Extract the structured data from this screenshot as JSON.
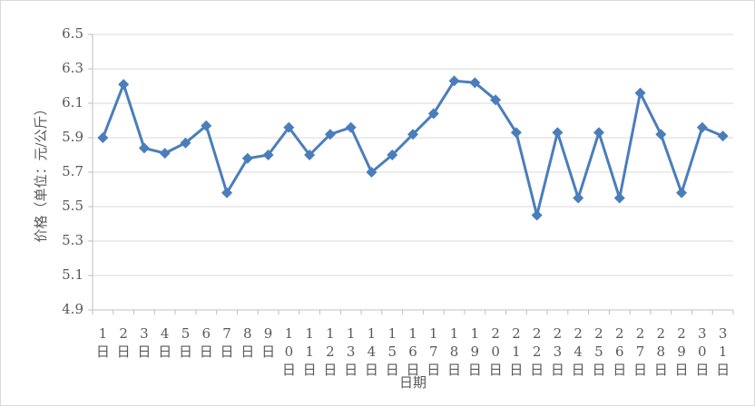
{
  "chart_data": {
    "type": "line",
    "categories": [
      "1日",
      "2日",
      "3日",
      "4日",
      "5日",
      "6日",
      "7日",
      "8日",
      "9日",
      "10日",
      "11日",
      "12日",
      "13日",
      "14日",
      "15日",
      "16日",
      "17日",
      "18日",
      "19日",
      "20日",
      "21日",
      "22日",
      "23日",
      "24日",
      "25日",
      "26日",
      "27日",
      "28日",
      "29日",
      "30日",
      "31日"
    ],
    "values": [
      5.9,
      6.21,
      5.84,
      5.81,
      5.87,
      5.97,
      5.58,
      5.78,
      5.8,
      5.96,
      5.8,
      5.92,
      5.96,
      5.7,
      5.8,
      5.92,
      6.04,
      6.23,
      6.22,
      6.12,
      5.93,
      5.45,
      5.93,
      5.55,
      5.93,
      5.55,
      6.16,
      5.92,
      5.58,
      5.96,
      5.91
    ],
    "color": "#4a7ebb",
    "ylim": [
      4.9,
      6.5
    ],
    "yticks": [
      4.9,
      5.1,
      5.3,
      5.5,
      5.7,
      5.9,
      6.1,
      6.3,
      6.5
    ],
    "grid": true,
    "xlabel": "日期",
    "ylabel": "价格（单位：元/公斤）"
  }
}
